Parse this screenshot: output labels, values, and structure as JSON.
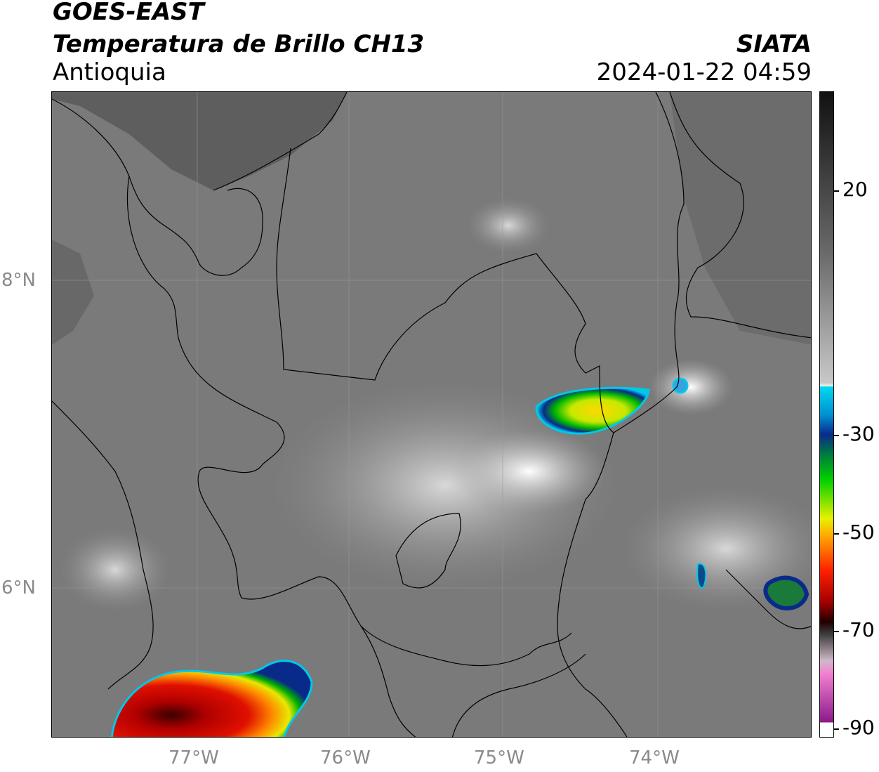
{
  "header": {
    "satellite": "GOES-EAST",
    "product": "Temperatura de Brillo CH13",
    "region": "Antioquia",
    "brand": "SIATA",
    "timestamp": "2024-01-22 04:59"
  },
  "map": {
    "lat_labels": [
      "8°N",
      "6°N"
    ],
    "lon_labels": [
      "77°W",
      "76°W",
      "75°W",
      "74°W"
    ]
  },
  "colorbar": {
    "tick_labels": [
      "20",
      "-30",
      "-50",
      "-70",
      "-90"
    ],
    "colors": {
      "warm_dark": "#1a1a1a",
      "mid_gray": "#8c8c8c",
      "light": "#f2f2f2",
      "cyan": "#00c8e8",
      "blue": "#0a2a8a",
      "green": "#00b000",
      "yellow": "#e8e800",
      "orange": "#ff9900",
      "red": "#e00000",
      "dark_red": "#5a0000",
      "magenta": "#c040c0",
      "purple": "#8a1a8a"
    }
  }
}
